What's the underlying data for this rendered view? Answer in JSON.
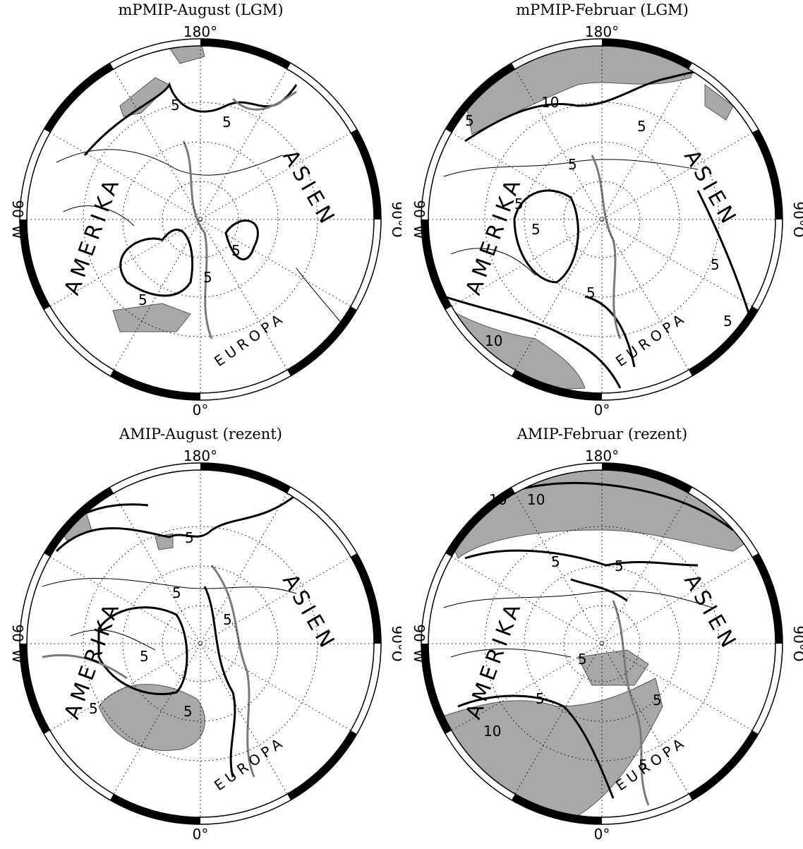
{
  "panels": [
    {
      "title": "mPMIP-August (LGM)",
      "top": "180°",
      "bottom": "0°",
      "left": "90°W",
      "right": "90°O",
      "regions": [
        "AMERIKA",
        "ASIEN",
        "EUROPA"
      ],
      "contour_labels": [
        "5",
        "5",
        "5",
        "5",
        "5"
      ]
    },
    {
      "title": "mPMIP-Februar (LGM)",
      "top": "180°",
      "bottom": "0°",
      "left": "90°W",
      "right": "90°O",
      "regions": [
        "AMERIKA",
        "ASIEN",
        "EUROPA"
      ],
      "contour_labels": [
        "10",
        "10",
        "5",
        "5",
        "5",
        "5",
        "5",
        "5",
        "5",
        "5"
      ]
    },
    {
      "title": "AMIP-August (rezent)",
      "top": "180°",
      "bottom": "0°",
      "left": "90°W",
      "right": "90°O",
      "regions": [
        "AMERIKA",
        "ASIEN",
        "EUROPA"
      ],
      "contour_labels": [
        "5",
        "5",
        "5",
        "5",
        "5",
        "5"
      ]
    },
    {
      "title": "AMIP-Februar (rezent)",
      "top": "180°",
      "bottom": "0°",
      "left": "90°W",
      "right": "90°O",
      "regions": [
        "AMERIKA",
        "ASIEN",
        "EUROPA"
      ],
      "contour_labels": [
        "10",
        "10",
        "10",
        "5",
        "5",
        "5",
        "5",
        "5",
        "5"
      ]
    }
  ],
  "colors": {
    "shade": "#a8a8a8",
    "contour": "#000000",
    "gray_contour": "#7a7a7a"
  }
}
